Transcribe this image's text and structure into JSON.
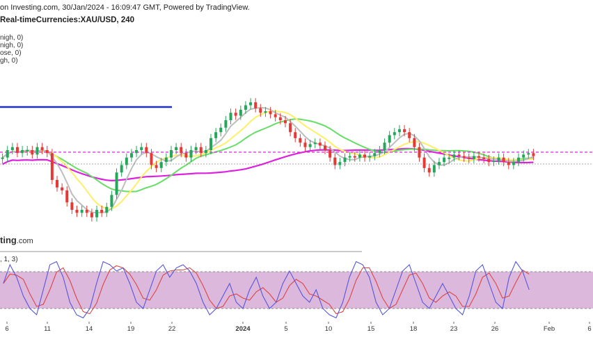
{
  "header": {
    "source_line": "on Investing.com, 30/Jan/2024 - 16:09:47 GMT, Powered by TradingView.",
    "instrument_line": "Real-timeCurrencies:XAU/USD, 240"
  },
  "indicator_labels": [
    "nigh, 0)",
    "nigh, 0)",
    "ose, 0)",
    "gh, 0)"
  ],
  "watermark": {
    "main": "ting",
    "suffix": ".com"
  },
  "stochastic_label": ", 1, 3)",
  "colors": {
    "up_candle": "#26a65b",
    "down_candle": "#e53935",
    "sma_fast": "#bdbdbd",
    "sma_mid": "#ffee66",
    "sma_slow": "#66dd66",
    "sma_200": "#dd22dd",
    "resistance_line": "#1a2fd6",
    "stoch_band_fill": "#dcb8dc",
    "stoch_k": "#5555dd",
    "stoch_d": "#dd4444"
  },
  "chart_data": {
    "type": "candlestick",
    "instrument": "XAU/USD",
    "timeframe": "240",
    "x_ticks": [
      "6",
      "11",
      "14",
      "19",
      "22",
      "2024",
      "5",
      "10",
      "15",
      "18",
      "23",
      "26",
      "Feb",
      "6"
    ],
    "candles_close_relative": [
      0.55,
      0.6,
      0.62,
      0.58,
      0.6,
      0.6,
      0.57,
      0.62,
      0.6,
      0.58,
      0.4,
      0.35,
      0.33,
      0.25,
      0.2,
      0.18,
      0.2,
      0.18,
      0.15,
      0.2,
      0.18,
      0.22,
      0.3,
      0.45,
      0.5,
      0.55,
      0.58,
      0.6,
      0.62,
      0.58,
      0.5,
      0.48,
      0.52,
      0.55,
      0.6,
      0.62,
      0.58,
      0.55,
      0.6,
      0.62,
      0.58,
      0.6,
      0.68,
      0.72,
      0.75,
      0.8,
      0.85,
      0.83,
      0.87,
      0.9,
      0.92,
      0.88,
      0.85,
      0.86,
      0.84,
      0.82,
      0.8,
      0.78,
      0.72,
      0.68,
      0.65,
      0.62,
      0.64,
      0.65,
      0.63,
      0.6,
      0.55,
      0.5,
      0.52,
      0.55,
      0.56,
      0.55,
      0.57,
      0.55,
      0.56,
      0.58,
      0.6,
      0.65,
      0.7,
      0.72,
      0.74,
      0.72,
      0.68,
      0.62,
      0.55,
      0.48,
      0.45,
      0.5,
      0.52,
      0.55,
      0.55,
      0.57,
      0.56,
      0.55,
      0.54,
      0.56,
      0.55,
      0.54,
      0.52,
      0.53,
      0.55,
      0.52,
      0.5,
      0.52,
      0.55,
      0.57,
      0.58,
      0.56
    ],
    "stochastic_k_relative": [
      0.6,
      0.9,
      0.7,
      0.4,
      0.2,
      0.1,
      0.5,
      0.9,
      0.95,
      0.7,
      0.3,
      0.1,
      0.05,
      0.2,
      0.6,
      0.95,
      0.9,
      0.8,
      0.85,
      0.6,
      0.3,
      0.2,
      0.5,
      0.8,
      0.9,
      0.7,
      0.85,
      0.9,
      0.8,
      0.6,
      0.3,
      0.1,
      0.2,
      0.4,
      0.6,
      0.3,
      0.2,
      0.5,
      0.7,
      0.4,
      0.2,
      0.3,
      0.6,
      0.8,
      0.6,
      0.4,
      0.3,
      0.5,
      0.2,
      0.1,
      0.05,
      0.3,
      0.7,
      0.95,
      0.9,
      0.7,
      0.3,
      0.1,
      0.2,
      0.5,
      0.8,
      0.9,
      0.6,
      0.3,
      0.2,
      0.4,
      0.6,
      0.4,
      0.2,
      0.1,
      0.4,
      0.8,
      0.9,
      0.6,
      0.3,
      0.2,
      0.7,
      0.95,
      0.8,
      0.5
    ],
    "stochastic_band": [
      20,
      80
    ],
    "legend": "none"
  }
}
